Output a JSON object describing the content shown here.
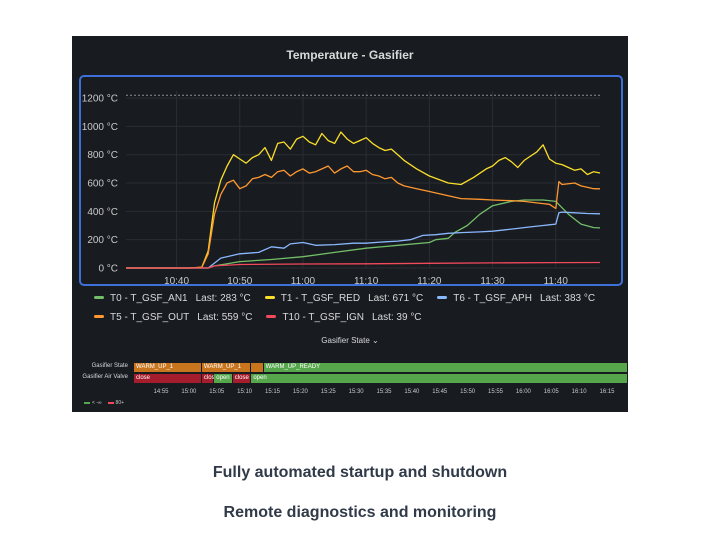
{
  "panel": {
    "title": "Temperature - Gasifier"
  },
  "chart_data": {
    "type": "line",
    "title": "Temperature - Gasifier",
    "ylim": [
      0,
      1250
    ],
    "y_ticks": [
      "1200 °C",
      "1000 °C",
      "800 °C",
      "600 °C",
      "400 °C",
      "200 °C",
      "0 °C"
    ],
    "y_tick_values": [
      1200,
      1000,
      800,
      600,
      400,
      200,
      0
    ],
    "x_ticks": [
      "10:40",
      "10:50",
      "11:00",
      "11:10",
      "11:20",
      "11:30",
      "11:40"
    ],
    "x_tick_minutes": [
      640,
      650,
      660,
      670,
      680,
      690,
      700
    ],
    "xlim_minutes": [
      632,
      707
    ],
    "threshold": 1220,
    "series": [
      {
        "name": "T0 - T_GSF_AN1",
        "last": "283 °C",
        "color": "#73bf69",
        "points": [
          [
            632,
            0
          ],
          [
            642,
            0
          ],
          [
            645,
            0
          ],
          [
            646,
            15
          ],
          [
            650,
            45
          ],
          [
            655,
            60
          ],
          [
            660,
            80
          ],
          [
            665,
            110
          ],
          [
            670,
            140
          ],
          [
            675,
            160
          ],
          [
            680,
            180
          ],
          [
            681,
            200
          ],
          [
            683,
            210
          ],
          [
            684,
            250
          ],
          [
            686,
            300
          ],
          [
            688,
            380
          ],
          [
            690,
            440
          ],
          [
            693,
            470
          ],
          [
            695,
            480
          ],
          [
            698,
            480
          ],
          [
            700,
            470
          ],
          [
            702,
            380
          ],
          [
            704,
            310
          ],
          [
            706,
            285
          ],
          [
            707,
            283
          ]
        ]
      },
      {
        "name": "T1 - T_GSF_RED",
        "last": "671 °C",
        "color": "#fade2a",
        "points": [
          [
            632,
            0
          ],
          [
            642,
            0
          ],
          [
            644,
            5
          ],
          [
            645,
            120
          ],
          [
            646,
            460
          ],
          [
            647,
            620
          ],
          [
            648,
            720
          ],
          [
            649,
            800
          ],
          [
            650,
            770
          ],
          [
            651,
            740
          ],
          [
            652,
            780
          ],
          [
            653,
            800
          ],
          [
            654,
            850
          ],
          [
            655,
            760
          ],
          [
            656,
            880
          ],
          [
            657,
            890
          ],
          [
            658,
            840
          ],
          [
            659,
            910
          ],
          [
            660,
            930
          ],
          [
            661,
            890
          ],
          [
            662,
            870
          ],
          [
            663,
            950
          ],
          [
            664,
            900
          ],
          [
            665,
            880
          ],
          [
            666,
            960
          ],
          [
            667,
            910
          ],
          [
            668,
            880
          ],
          [
            669,
            900
          ],
          [
            670,
            920
          ],
          [
            671,
            880
          ],
          [
            672,
            850
          ],
          [
            673,
            830
          ],
          [
            674,
            840
          ],
          [
            675,
            800
          ],
          [
            676,
            760
          ],
          [
            678,
            700
          ],
          [
            680,
            650
          ],
          [
            683,
            600
          ],
          [
            685,
            590
          ],
          [
            687,
            640
          ],
          [
            689,
            700
          ],
          [
            690,
            720
          ],
          [
            691,
            760
          ],
          [
            692,
            780
          ],
          [
            693,
            750
          ],
          [
            694,
            710
          ],
          [
            695,
            760
          ],
          [
            696,
            790
          ],
          [
            697,
            820
          ],
          [
            698,
            870
          ],
          [
            699,
            770
          ],
          [
            700,
            740
          ],
          [
            701,
            730
          ],
          [
            702,
            710
          ],
          [
            703,
            690
          ],
          [
            704,
            700
          ],
          [
            705,
            660
          ],
          [
            706,
            680
          ],
          [
            707,
            671
          ]
        ]
      },
      {
        "name": "T6 - T_GSF_APH",
        "last": "383 °C",
        "color": "#8ab8ff",
        "points": [
          [
            632,
            0
          ],
          [
            645,
            0
          ],
          [
            647,
            70
          ],
          [
            650,
            100
          ],
          [
            653,
            110
          ],
          [
            655,
            150
          ],
          [
            657,
            140
          ],
          [
            658,
            170
          ],
          [
            660,
            180
          ],
          [
            662,
            160
          ],
          [
            665,
            165
          ],
          [
            668,
            175
          ],
          [
            670,
            175
          ],
          [
            673,
            185
          ],
          [
            675,
            190
          ],
          [
            677,
            200
          ],
          [
            679,
            230
          ],
          [
            681,
            235
          ],
          [
            683,
            245
          ],
          [
            685,
            250
          ],
          [
            688,
            255
          ],
          [
            690,
            260
          ],
          [
            692,
            270
          ],
          [
            694,
            280
          ],
          [
            696,
            290
          ],
          [
            698,
            300
          ],
          [
            699,
            305
          ],
          [
            700,
            310
          ],
          [
            700.5,
            390
          ],
          [
            701,
            395
          ],
          [
            703,
            390
          ],
          [
            705,
            385
          ],
          [
            707,
            383
          ]
        ]
      },
      {
        "name": "T5 - T_GSF_OUT",
        "last": "559 °C",
        "color": "#ff9830",
        "points": [
          [
            632,
            0
          ],
          [
            642,
            0
          ],
          [
            644,
            5
          ],
          [
            645,
            100
          ],
          [
            646,
            380
          ],
          [
            647,
            520
          ],
          [
            648,
            600
          ],
          [
            649,
            620
          ],
          [
            650,
            560
          ],
          [
            651,
            580
          ],
          [
            652,
            630
          ],
          [
            653,
            640
          ],
          [
            654,
            660
          ],
          [
            655,
            640
          ],
          [
            656,
            680
          ],
          [
            657,
            690
          ],
          [
            658,
            650
          ],
          [
            659,
            680
          ],
          [
            660,
            700
          ],
          [
            661,
            670
          ],
          [
            662,
            680
          ],
          [
            663,
            700
          ],
          [
            664,
            720
          ],
          [
            665,
            670
          ],
          [
            666,
            700
          ],
          [
            667,
            720
          ],
          [
            668,
            680
          ],
          [
            669,
            680
          ],
          [
            670,
            690
          ],
          [
            671,
            660
          ],
          [
            672,
            650
          ],
          [
            673,
            630
          ],
          [
            674,
            640
          ],
          [
            675,
            600
          ],
          [
            676,
            580
          ],
          [
            678,
            560
          ],
          [
            680,
            540
          ],
          [
            683,
            510
          ],
          [
            685,
            490
          ],
          [
            688,
            485
          ],
          [
            690,
            480
          ],
          [
            693,
            475
          ],
          [
            695,
            470
          ],
          [
            698,
            455
          ],
          [
            699,
            450
          ],
          [
            700,
            420
          ],
          [
            700.5,
            610
          ],
          [
            701,
            590
          ],
          [
            703,
            600
          ],
          [
            704,
            580
          ],
          [
            706,
            560
          ],
          [
            707,
            559
          ]
        ]
      },
      {
        "name": "T10 - T_GSF_IGN",
        "last": "39 °C",
        "color": "#f2495c",
        "points": [
          [
            632,
            0
          ],
          [
            645,
            0
          ],
          [
            646,
            15
          ],
          [
            650,
            25
          ],
          [
            660,
            28
          ],
          [
            670,
            30
          ],
          [
            680,
            33
          ],
          [
            690,
            36
          ],
          [
            700,
            38
          ],
          [
            707,
            39
          ]
        ]
      }
    ]
  },
  "state_panel": {
    "title": "Gasifier State",
    "rows": [
      {
        "label": "Gasifier State",
        "segments": [
          {
            "text": "WARM_UP_1",
            "start": 0.0,
            "end": 0.1375,
            "color": "#c8751e"
          },
          {
            "text": "WARM_UP_1",
            "start": 0.1375,
            "end": 0.2375,
            "color": "#c8751e"
          },
          {
            "text": "",
            "start": 0.2375,
            "end": 0.2625,
            "color": "#c8751e"
          },
          {
            "text": "WARM_UP_READY",
            "start": 0.2625,
            "end": 1.0,
            "color": "#56a64b"
          }
        ]
      },
      {
        "label": "Gasifier Air Valve",
        "segments": [
          {
            "text": "close",
            "start": 0.0,
            "end": 0.1375,
            "color": "#a51d2c"
          },
          {
            "text": "close",
            "start": 0.1375,
            "end": 0.1625,
            "color": "#a51d2c"
          },
          {
            "text": "open",
            "start": 0.1625,
            "end": 0.2,
            "color": "#56a64b"
          },
          {
            "text": "close",
            "start": 0.2,
            "end": 0.2375,
            "color": "#a51d2c"
          },
          {
            "text": "open",
            "start": 0.2375,
            "end": 1.0,
            "color": "#56a64b"
          }
        ]
      }
    ],
    "time_ticks": [
      "14:55",
      "15:00",
      "15:05",
      "15:10",
      "15:15",
      "15:20",
      "15:25",
      "15:30",
      "15:35",
      "15:40",
      "15:45",
      "15:50",
      "15:55",
      "16:00",
      "16:05",
      "16:10",
      "16:15"
    ],
    "legend": [
      {
        "text": "< -∞",
        "color": "#56a64b"
      },
      {
        "text": "80+",
        "color": "#f2495c"
      }
    ]
  },
  "captions": {
    "line1": "Fully automated startup and shutdown",
    "line2": "Remote diagnostics and monitoring"
  }
}
